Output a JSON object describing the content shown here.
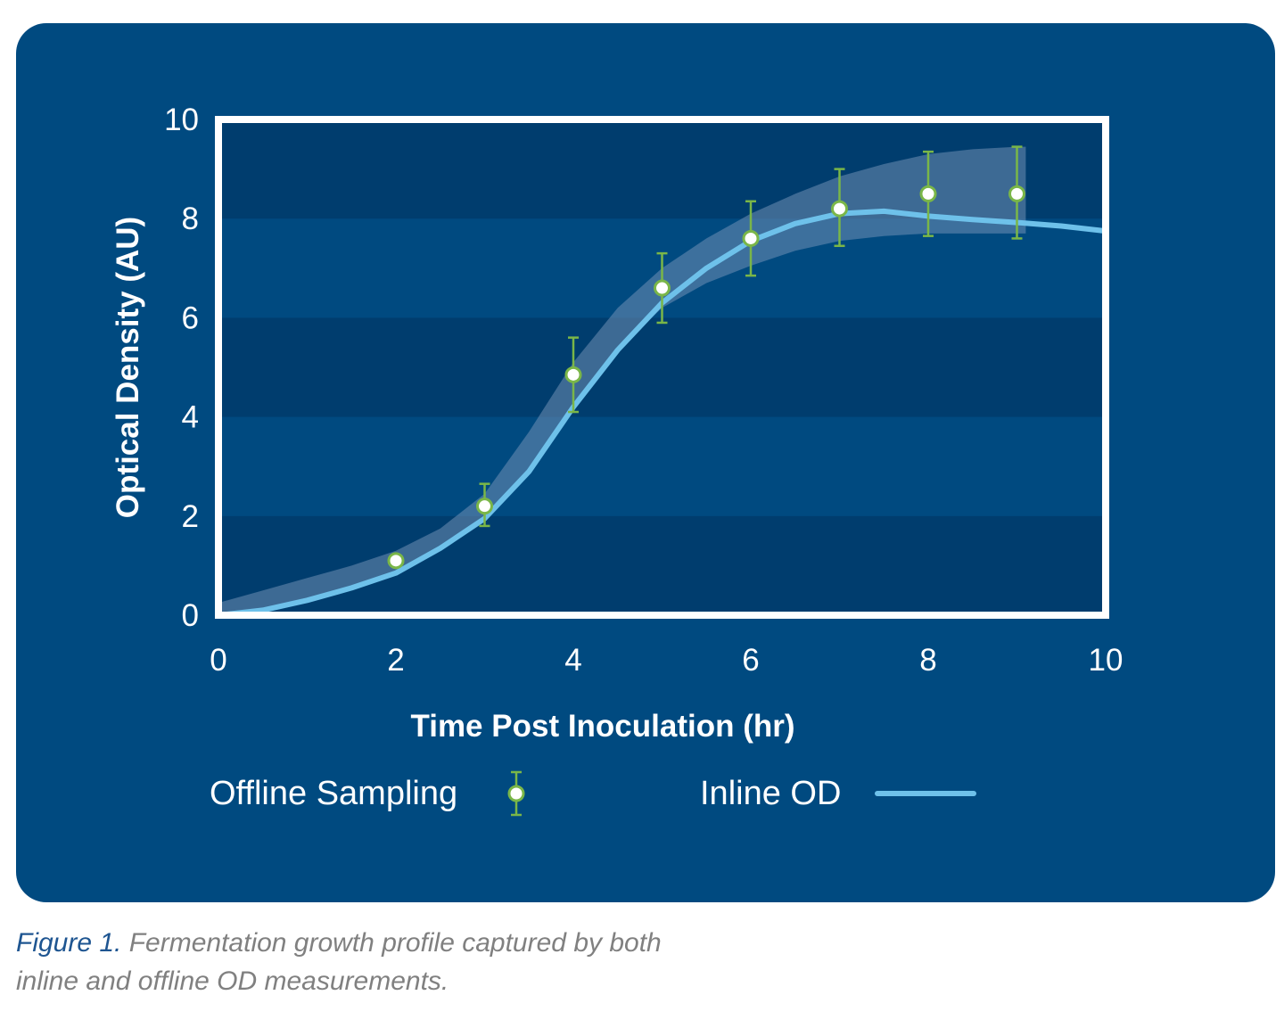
{
  "colors": {
    "panel": "#004a80",
    "band_dark": "#003d6e",
    "band_light": "#004a80",
    "frame": "#ffffff",
    "inline_line": "#6ec1ea",
    "marker_stroke": "#7ab648",
    "marker_fill": "#ffffff",
    "confidence_band": "#6f8fb5",
    "caption_label": "#1e5591",
    "caption_text": "#808080"
  },
  "chart_data": {
    "type": "line",
    "xlabel": "Time Post Inoculation (hr)",
    "ylabel": "Optical Density (AU)",
    "xlim": [
      0,
      10
    ],
    "ylim": [
      0,
      10
    ],
    "x_ticks": [
      "0",
      "2",
      "4",
      "6",
      "8",
      "10"
    ],
    "y_ticks": [
      "0",
      "2",
      "4",
      "6",
      "8",
      "10"
    ],
    "grid": "alternating horizontal bands",
    "legend_position": "bottom",
    "series": [
      {
        "name": "Offline Sampling",
        "kind": "scatter-errorbar",
        "points": [
          {
            "x": 2.0,
            "y": 1.1
          },
          {
            "x": 3.0,
            "y": 2.2,
            "err_low": 1.8,
            "err_high": 2.65
          },
          {
            "x": 4.0,
            "y": 4.85,
            "err_low": 4.1,
            "err_high": 5.6
          },
          {
            "x": 5.0,
            "y": 6.6,
            "err_low": 5.9,
            "err_high": 7.3
          },
          {
            "x": 6.0,
            "y": 7.6,
            "err_low": 6.85,
            "err_high": 8.35
          },
          {
            "x": 7.0,
            "y": 8.2,
            "err_low": 7.45,
            "err_high": 9.0
          },
          {
            "x": 8.0,
            "y": 8.5,
            "err_low": 7.65,
            "err_high": 9.35
          },
          {
            "x": 9.0,
            "y": 8.5,
            "err_low": 7.6,
            "err_high": 9.45
          }
        ]
      },
      {
        "name": "Inline OD",
        "kind": "line",
        "x": [
          0,
          0.5,
          1,
          1.5,
          2,
          2.5,
          3,
          3.5,
          4,
          4.5,
          5,
          5.5,
          6,
          6.5,
          7,
          7.5,
          8,
          8.5,
          9,
          9.5,
          10
        ],
        "y": [
          0.0,
          0.1,
          0.3,
          0.55,
          0.85,
          1.35,
          1.95,
          2.9,
          4.2,
          5.35,
          6.3,
          7.0,
          7.55,
          7.9,
          8.1,
          8.15,
          8.05,
          7.98,
          7.92,
          7.85,
          7.75
        ]
      },
      {
        "name": "",
        "kind": "band",
        "x": [
          0,
          0.5,
          1,
          1.5,
          2,
          2.5,
          3,
          3.5,
          4,
          4.5,
          5,
          5.5,
          6,
          6.5,
          7,
          7.5,
          8,
          8.5,
          9,
          9.1
        ],
        "upper": [
          0.25,
          0.5,
          0.75,
          1.0,
          1.3,
          1.75,
          2.45,
          3.7,
          5.1,
          6.2,
          7.0,
          7.6,
          8.1,
          8.5,
          8.85,
          9.1,
          9.3,
          9.4,
          9.45,
          9.45
        ],
        "lower": [
          0.0,
          0.1,
          0.3,
          0.55,
          0.85,
          1.35,
          1.95,
          2.9,
          4.2,
          5.35,
          6.2,
          6.7,
          7.05,
          7.35,
          7.55,
          7.65,
          7.7,
          7.7,
          7.7,
          7.7
        ]
      }
    ]
  },
  "legend": {
    "offline_label": "Offline Sampling",
    "inline_label": "Inline OD"
  },
  "caption": {
    "label": "Figure 1.",
    "text": " Fermentation growth profile captured by both inline and offline OD measurements."
  }
}
